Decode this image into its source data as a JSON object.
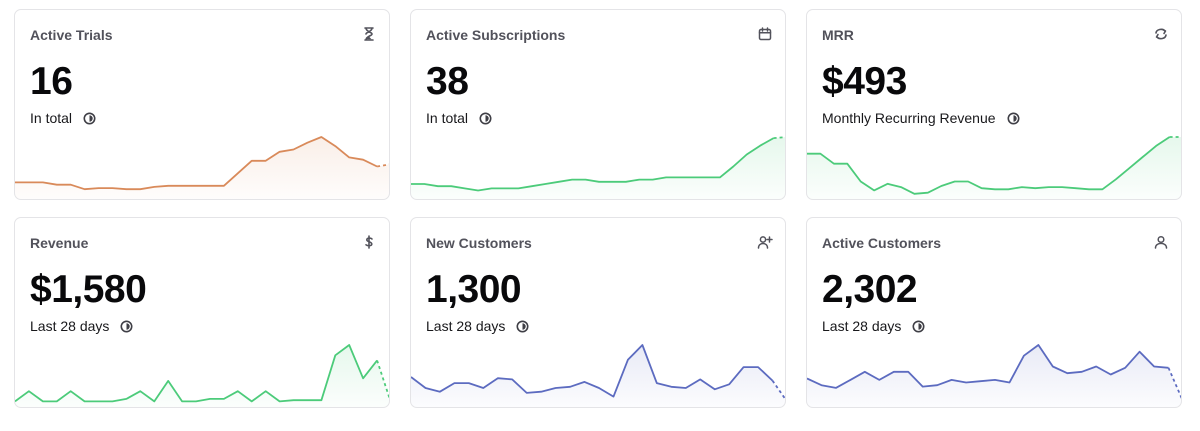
{
  "cards": [
    {
      "title": "Active Trials",
      "value": "16",
      "subtitle": "In total",
      "icon": "hourglass-icon",
      "color": "#d98a5a",
      "chart_data": {
        "type": "line",
        "values": [
          12,
          12,
          12,
          10,
          10,
          6,
          7,
          7,
          6,
          6,
          8,
          9,
          9,
          9,
          9,
          9,
          20,
          31,
          31,
          39,
          41,
          47,
          52,
          44,
          34,
          32,
          26,
          28
        ],
        "dashed_last": true
      }
    },
    {
      "title": "Active Subscriptions",
      "value": "38",
      "subtitle": "In total",
      "icon": "calendar-icon",
      "color": "#4ccb7a",
      "chart_data": {
        "type": "line",
        "values": [
          11,
          11,
          9,
          9,
          7,
          5,
          7,
          7,
          7,
          9,
          11,
          13,
          15,
          15,
          13,
          13,
          13,
          15,
          15,
          17,
          17,
          17,
          17,
          17,
          27,
          38,
          46,
          53,
          54
        ],
        "dashed_last": true
      }
    },
    {
      "title": "MRR",
      "value": "$493",
      "subtitle": "Monthly Recurring Revenue",
      "icon": "refresh-icon",
      "color": "#4ccb7a",
      "chart_data": {
        "type": "line",
        "values": [
          38,
          38,
          29,
          29,
          13,
          5,
          11,
          8,
          2,
          3,
          9,
          13,
          13,
          7,
          6,
          6,
          8,
          7,
          8,
          8,
          7,
          6,
          6,
          15,
          25,
          35,
          45,
          53,
          53
        ],
        "dashed_last": true
      }
    },
    {
      "title": "Revenue",
      "value": "$1,580",
      "subtitle": "Last 28 days",
      "icon": "dollar-icon",
      "color": "#4ccb7a",
      "chart_data": {
        "type": "line",
        "values": [
          2,
          10,
          2,
          2,
          10,
          2,
          2,
          2,
          4,
          10,
          2,
          18,
          2,
          2,
          4,
          4,
          10,
          2,
          10,
          2,
          3,
          3,
          3,
          38,
          46,
          20,
          34,
          1
        ],
        "dashed_last": true
      }
    },
    {
      "title": "New Customers",
      "value": "1,300",
      "subtitle": "Last 28 days",
      "icon": "user-plus-icon",
      "color": "#5c6bc0",
      "chart_data": {
        "type": "line",
        "values": [
          22,
          13,
          10,
          17,
          17,
          13,
          21,
          20,
          9,
          10,
          13,
          14,
          18,
          13,
          6,
          36,
          48,
          17,
          14,
          13,
          20,
          12,
          16,
          30,
          30,
          19,
          2
        ],
        "dashed_last": true
      }
    },
    {
      "title": "Active Customers",
      "value": "2,302",
      "subtitle": "Last 28 days",
      "icon": "user-icon",
      "color": "#5c6bc0",
      "chart_data": {
        "type": "line",
        "values": [
          19,
          14,
          12,
          18,
          24,
          18,
          24,
          24,
          13,
          14,
          18,
          16,
          17,
          18,
          16,
          36,
          44,
          28,
          23,
          24,
          28,
          22,
          27,
          39,
          28,
          27,
          2
        ],
        "dashed_last": true
      }
    }
  ]
}
